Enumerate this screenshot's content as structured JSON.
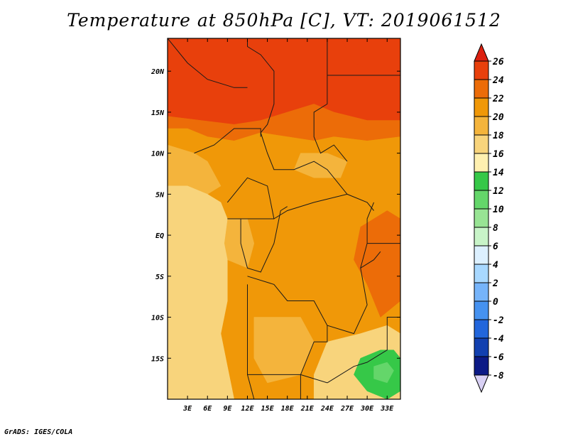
{
  "title": "Temperature at 850hPa [C], VT: 2019061512",
  "credit": "GrADS: IGES/COLA",
  "colors": {
    "frame": "#000000",
    "border": "#1a1a1a"
  },
  "chart_data": {
    "type": "heatmap",
    "variable": "Temperature at 850hPa",
    "units": "C",
    "valid_time": "2019061512",
    "x_axis": {
      "range": [
        0,
        35
      ],
      "ticks": [
        3,
        6,
        9,
        12,
        15,
        18,
        21,
        24,
        27,
        30,
        33
      ],
      "tick_labels": [
        "3E",
        "6E",
        "9E",
        "12E",
        "15E",
        "18E",
        "21E",
        "24E",
        "27E",
        "30E",
        "33E"
      ]
    },
    "y_axis": {
      "range": [
        -20,
        24
      ],
      "ticks": [
        20,
        15,
        10,
        5,
        0,
        -5,
        -10,
        -15
      ],
      "tick_labels": [
        "20N",
        "15N",
        "10N",
        "5N",
        "EQ",
        "5S",
        "10S",
        "15S"
      ]
    },
    "colorbar": {
      "levels": [
        26,
        24,
        22,
        20,
        18,
        16,
        14,
        12,
        10,
        8,
        6,
        4,
        2,
        0,
        -2,
        -4,
        -6,
        -8
      ],
      "labels": [
        "26",
        "24",
        "22",
        "20",
        "18",
        "16",
        "14",
        "12",
        "10",
        "8",
        "6",
        "4",
        "2",
        "0",
        "-2",
        "-4",
        "-6",
        "-8"
      ],
      "colors": [
        "#dc2010",
        "#e8400c",
        "#ec6c08",
        "#f09808",
        "#f4b43c",
        "#f8d47c",
        "#fff0b0",
        "#36c848",
        "#64d66a",
        "#98e494",
        "#c8f4c8",
        "#dcf0ff",
        "#a8d8ff",
        "#76b4fa",
        "#4692f0",
        "#2266dc",
        "#1240b0",
        "#0c1a86",
        "#d8d0f4"
      ]
    },
    "regions": [
      {
        "name": "sahara-hot",
        "level": 25,
        "poly": [
          [
            0,
            24
          ],
          [
            35,
            24
          ],
          [
            35,
            14
          ],
          [
            30,
            14
          ],
          [
            25,
            15
          ],
          [
            22,
            16
          ],
          [
            18,
            15
          ],
          [
            14,
            14
          ],
          [
            10,
            13.5
          ],
          [
            5,
            14
          ],
          [
            0,
            14.5
          ]
        ]
      },
      {
        "name": "east-hot",
        "level": 25,
        "poly": [
          [
            26,
            24
          ],
          [
            35,
            24
          ],
          [
            35,
            19
          ],
          [
            31,
            20
          ],
          [
            28,
            21
          ]
        ]
      },
      {
        "name": "sahel-warm",
        "level": 23,
        "poly": [
          [
            0,
            14.5
          ],
          [
            5,
            14
          ],
          [
            10,
            13.5
          ],
          [
            14,
            14
          ],
          [
            18,
            15
          ],
          [
            22,
            16
          ],
          [
            25,
            15
          ],
          [
            30,
            14
          ],
          [
            35,
            14
          ],
          [
            35,
            12
          ],
          [
            30,
            11.5
          ],
          [
            25,
            12
          ],
          [
            22,
            11.5
          ],
          [
            18,
            12
          ],
          [
            14,
            12.5
          ],
          [
            10,
            11.5
          ],
          [
            6,
            12
          ],
          [
            3,
            13
          ],
          [
            0,
            13
          ]
        ]
      },
      {
        "name": "central-belt",
        "level": 21,
        "poly": [
          [
            0,
            13
          ],
          [
            3,
            13
          ],
          [
            6,
            12
          ],
          [
            10,
            11.5
          ],
          [
            14,
            12.5
          ],
          [
            18,
            12
          ],
          [
            22,
            11.5
          ],
          [
            25,
            12
          ],
          [
            30,
            11.5
          ],
          [
            35,
            12
          ],
          [
            35,
            -20
          ],
          [
            0,
            -20
          ],
          [
            0,
            5
          ]
        ]
      },
      {
        "name": "west-coast-mild",
        "level": 19,
        "poly": [
          [
            0,
            11
          ],
          [
            4,
            10
          ],
          [
            6,
            9
          ],
          [
            8,
            6
          ],
          [
            6,
            5
          ],
          [
            3,
            6
          ],
          [
            0,
            6
          ]
        ]
      },
      {
        "name": "gabon-mild",
        "level": 19,
        "poly": [
          [
            9,
            2
          ],
          [
            12,
            2
          ],
          [
            13,
            -1
          ],
          [
            12,
            -4
          ],
          [
            9,
            -3
          ],
          [
            8.5,
            -1
          ]
        ]
      },
      {
        "name": "ne-mild",
        "level": 19,
        "poly": [
          [
            20,
            10
          ],
          [
            24,
            10
          ],
          [
            27,
            9
          ],
          [
            26,
            7
          ],
          [
            22,
            7
          ],
          [
            19,
            8
          ]
        ]
      },
      {
        "name": "gulf-cool",
        "level": 17,
        "poly": [
          [
            0,
            6
          ],
          [
            3,
            6
          ],
          [
            6,
            5
          ],
          [
            8,
            4
          ],
          [
            9,
            2
          ],
          [
            8.5,
            -1
          ],
          [
            9,
            -3
          ],
          [
            9,
            -8
          ],
          [
            8,
            -12
          ],
          [
            9,
            -16
          ],
          [
            10,
            -20
          ],
          [
            0,
            -20
          ]
        ]
      },
      {
        "name": "angola-mild",
        "level": 19,
        "poly": [
          [
            13,
            -10
          ],
          [
            20,
            -10
          ],
          [
            22,
            -13
          ],
          [
            20,
            -17
          ],
          [
            15,
            -18
          ],
          [
            13,
            -15
          ]
        ]
      },
      {
        "name": "lakes-warm",
        "level": 23,
        "poly": [
          [
            29,
            1
          ],
          [
            33,
            3
          ],
          [
            35,
            2
          ],
          [
            35,
            -8
          ],
          [
            32,
            -10
          ],
          [
            30,
            -6
          ],
          [
            28,
            -3
          ]
        ]
      },
      {
        "name": "south-cool",
        "level": 17,
        "poly": [
          [
            24,
            -13
          ],
          [
            29,
            -12
          ],
          [
            33,
            -11
          ],
          [
            35,
            -12
          ],
          [
            35,
            -20
          ],
          [
            22,
            -20
          ],
          [
            22,
            -17
          ]
        ]
      },
      {
        "name": "malawi-green",
        "level": 13,
        "poly": [
          [
            29,
            -15
          ],
          [
            32,
            -14
          ],
          [
            34,
            -14
          ],
          [
            35,
            -15
          ],
          [
            35,
            -19
          ],
          [
            33,
            -20
          ],
          [
            30,
            -19
          ],
          [
            28,
            -17
          ]
        ]
      },
      {
        "name": "zambezi-green",
        "level": 11,
        "poly": [
          [
            31,
            -16
          ],
          [
            33,
            -15.5
          ],
          [
            34,
            -16.5
          ],
          [
            33,
            -18
          ],
          [
            31,
            -17.5
          ]
        ]
      }
    ],
    "borders": [
      [
        [
          0,
          24
        ],
        [
          3,
          21
        ],
        [
          6,
          19
        ],
        [
          10,
          18
        ],
        [
          12,
          18
        ]
      ],
      [
        [
          12,
          24
        ],
        [
          12,
          23
        ],
        [
          14,
          22
        ],
        [
          16,
          20
        ],
        [
          16,
          16
        ],
        [
          15,
          13.5
        ],
        [
          14,
          12.5
        ]
      ],
      [
        [
          24,
          24
        ],
        [
          24,
          19.5
        ],
        [
          24,
          16
        ],
        [
          22,
          15
        ],
        [
          22,
          12
        ],
        [
          23,
          10
        ],
        [
          25,
          11
        ],
        [
          27,
          9
        ]
      ],
      [
        [
          24,
          19.5
        ],
        [
          35,
          19.5
        ]
      ],
      [
        [
          4,
          10
        ],
        [
          7,
          11
        ],
        [
          10,
          13
        ],
        [
          14,
          13
        ],
        [
          14,
          12
        ]
      ],
      [
        [
          14,
          12.5
        ],
        [
          15,
          10
        ],
        [
          16,
          8
        ],
        [
          19,
          8
        ],
        [
          22,
          9
        ],
        [
          24,
          8
        ],
        [
          27,
          5
        ],
        [
          30,
          4
        ],
        [
          31,
          3
        ]
      ],
      [
        [
          9,
          4
        ],
        [
          12,
          7
        ],
        [
          15,
          6
        ],
        [
          16,
          2
        ],
        [
          18,
          3
        ],
        [
          22,
          4
        ],
        [
          27,
          5
        ]
      ],
      [
        [
          9,
          2
        ],
        [
          11,
          2
        ],
        [
          12,
          2
        ],
        [
          14,
          2
        ],
        [
          16,
          2
        ]
      ],
      [
        [
          11,
          2
        ],
        [
          11,
          -1
        ],
        [
          12,
          -4
        ],
        [
          14,
          -4.5
        ],
        [
          16,
          -1
        ],
        [
          17,
          3
        ],
        [
          18,
          3.5
        ]
      ],
      [
        [
          12,
          -5
        ],
        [
          16,
          -6
        ],
        [
          18,
          -8
        ],
        [
          22,
          -8
        ],
        [
          24,
          -11
        ],
        [
          28,
          -12
        ],
        [
          30,
          -8.5
        ],
        [
          29,
          -4
        ],
        [
          30,
          -1
        ],
        [
          30,
          2
        ],
        [
          31,
          4
        ]
      ],
      [
        [
          30,
          -1
        ],
        [
          33,
          -1
        ],
        [
          35,
          -1
        ]
      ],
      [
        [
          29,
          -4
        ],
        [
          31,
          -3
        ],
        [
          32,
          -2
        ]
      ],
      [
        [
          12,
          -6
        ],
        [
          12,
          -17
        ],
        [
          14,
          -17
        ],
        [
          20,
          -17
        ],
        [
          24,
          -18
        ]
      ],
      [
        [
          20,
          -17
        ],
        [
          22,
          -13
        ],
        [
          24,
          -13
        ],
        [
          24,
          -11
        ]
      ],
      [
        [
          24,
          -18
        ],
        [
          28,
          -16
        ],
        [
          30,
          -15.5
        ],
        [
          33,
          -14
        ],
        [
          33,
          -10
        ],
        [
          35,
          -10
        ]
      ],
      [
        [
          12,
          -17
        ],
        [
          13,
          -20
        ]
      ],
      [
        [
          20,
          -17
        ],
        [
          20,
          -20
        ]
      ]
    ]
  }
}
